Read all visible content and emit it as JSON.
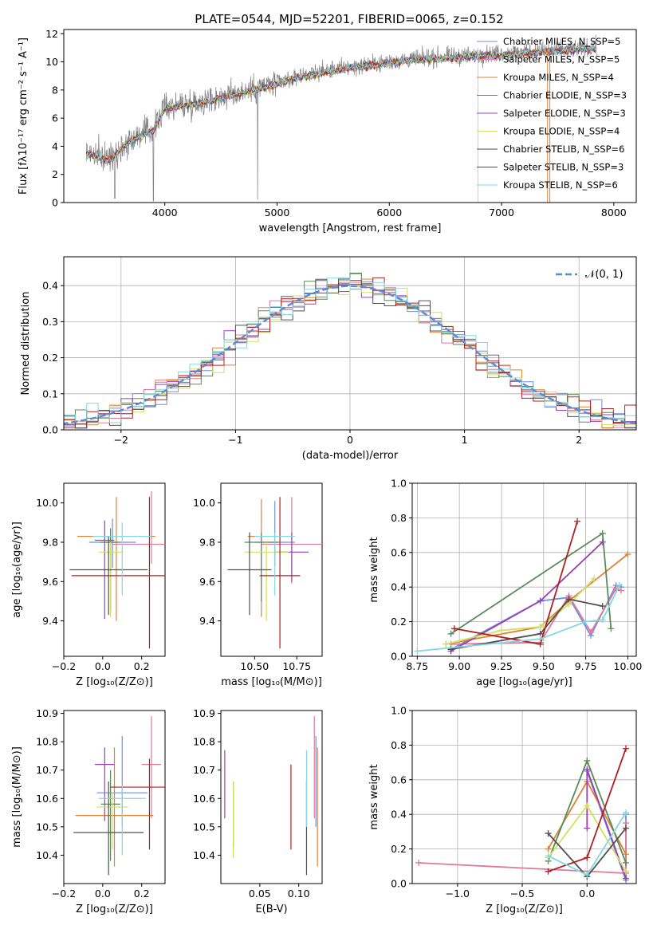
{
  "title": "PLATE=0544, MJD=52201, FIBERID=0065, z=0.152",
  "colors": {
    "c1": "#6f8fe0",
    "c2": "#e07a9a",
    "c3": "#e08030",
    "c4": "#5a8a5a",
    "c5": "#9a40b0",
    "c6": "#d0e060",
    "c7": "#505050",
    "c8": "#b02020",
    "c9": "#80d8e0"
  },
  "chart_data": [
    {
      "type": "line",
      "name": "spectrum",
      "xlabel": "wavelength [Angstrom, rest frame]",
      "ylabel": "Flux [fλ10⁻¹⁷ erg cm⁻² s⁻¹ A⁻¹]",
      "xlim": [
        3100,
        8200
      ],
      "ylim": [
        0,
        12.3
      ],
      "xticks": [
        "4000",
        "5000",
        "6000",
        "7000",
        "8000"
      ],
      "yticks": [
        "0",
        "2",
        "4",
        "6",
        "8",
        "10",
        "12"
      ],
      "legend_position": "top-right",
      "legend": [
        "Chabrier MILES, N_SSP=5",
        "Salpeter MILES, N_SSP=5",
        "Kroupa MILES, N_SSP=4",
        "Chabrier ELODIE, N_SSP=3",
        "Salpeter ELODIE, N_SSP=3",
        "Kroupa ELODIE, N_SSP=4",
        "Chabrier STELIB, N_SSP=6",
        "Salpeter STELIB, N_SSP=3",
        "Kroupa STELIB, N_SSP=6"
      ],
      "continuum_x": [
        3300,
        3500,
        3700,
        3900,
        4000,
        4200,
        4400,
        4600,
        4800,
        5000,
        5200,
        5400,
        5600,
        5800,
        6000,
        6200,
        6400,
        6600,
        6800,
        7000,
        7200,
        7400,
        7600,
        7800
      ],
      "continuum_y": [
        3.6,
        3.1,
        4.5,
        5.2,
        6.8,
        7.0,
        7.3,
        7.7,
        8.1,
        8.5,
        9.0,
        9.3,
        9.6,
        9.8,
        10.0,
        10.2,
        10.3,
        10.4,
        10.5,
        10.6,
        10.7,
        10.8,
        10.9,
        11.0
      ]
    },
    {
      "type": "histogram",
      "name": "residuals",
      "xlabel": "(data-model)/error",
      "ylabel": "Normed distribution",
      "xlim": [
        -2.5,
        2.5
      ],
      "ylim": [
        0,
        0.48
      ],
      "xticks": [
        "−2",
        "−1",
        "0",
        "1",
        "2"
      ],
      "yticks": [
        "0.0",
        "0.1",
        "0.2",
        "0.3",
        "0.4"
      ],
      "legend_position": "top-right",
      "legend": [
        "𝒩(0, 1)"
      ],
      "bin_width": 0.1
    },
    {
      "type": "scatter",
      "name": "age-vs-Z",
      "xlabel": "Z [log₁₀(Z/Z⊙)]",
      "ylabel": "age  [log₁₀(age/yr)]",
      "xlim": [
        -0.2,
        0.32
      ],
      "ylim": [
        9.22,
        10.1
      ],
      "xticks": [
        "−0.2",
        "0.0",
        "0.2"
      ],
      "yticks": [
        "9.4",
        "9.6",
        "9.8",
        "10.0"
      ],
      "points": [
        {
          "x": 0.05,
          "y": 9.8,
          "xerr": 0.12,
          "yerr": [
            0.13,
            0.12
          ]
        },
        {
          "x": 0.25,
          "y": 9.79,
          "xerr": 0.2,
          "yerr": [
            0.1,
            0.27
          ]
        },
        {
          "x": 0.07,
          "y": 9.83,
          "xerr": 0.2,
          "yerr": [
            0.43,
            0.2
          ]
        },
        {
          "x": 0.04,
          "y": 9.8,
          "xerr": 0.05,
          "yerr": [
            0.35,
            0.07
          ]
        },
        {
          "x": 0.01,
          "y": 9.81,
          "xerr": 0.05,
          "yerr": [
            0.4,
            0.1
          ]
        },
        {
          "x": 0.04,
          "y": 9.75,
          "xerr": 0.06,
          "yerr": [
            0.33,
            0.05
          ]
        },
        {
          "x": 0.03,
          "y": 9.66,
          "xerr": 0.2,
          "yerr": [
            0.23,
            0.17
          ]
        },
        {
          "x": 0.24,
          "y": 9.63,
          "xerr": 0.4,
          "yerr": [
            0.37,
            0.4
          ]
        },
        {
          "x": 0.1,
          "y": 9.83,
          "xerr": 0.15,
          "yerr": [
            0.3,
            0.07
          ]
        }
      ]
    },
    {
      "type": "scatter",
      "name": "age-vs-mass",
      "xlabel": "mass [log₁₀(M/M⊙)]",
      "ylabel": "",
      "xlim": [
        10.3,
        10.9
      ],
      "ylim": [
        9.22,
        10.1
      ],
      "xticks": [
        "10.50",
        "10.75"
      ],
      "yticks": [
        "9.4",
        "9.6",
        "9.8",
        "10.0"
      ],
      "points": [
        {
          "x": 10.62,
          "y": 9.8,
          "xerr": 0.12,
          "yerr": [
            0.12,
            0.21
          ]
        },
        {
          "x": 10.72,
          "y": 9.79,
          "xerr": 0.18,
          "yerr": [
            0.2,
            0.24
          ]
        },
        {
          "x": 10.54,
          "y": 9.83,
          "xerr": 0.08,
          "yerr": [
            0.41,
            0.19
          ]
        },
        {
          "x": 10.54,
          "y": 9.8,
          "xerr": 0.1,
          "yerr": [
            0.3,
            0.05
          ]
        },
        {
          "x": 10.72,
          "y": 9.75,
          "xerr": 0.1,
          "yerr": [
            0.15,
            0.1
          ]
        },
        {
          "x": 10.57,
          "y": 9.75,
          "xerr": 0.13,
          "yerr": [
            0.35,
            0.05
          ]
        },
        {
          "x": 10.47,
          "y": 9.66,
          "xerr": 0.13,
          "yerr": [
            0.23,
            0.19
          ]
        },
        {
          "x": 10.65,
          "y": 9.63,
          "xerr": 0.12,
          "yerr": [
            0.37,
            0.4
          ]
        },
        {
          "x": 10.62,
          "y": 9.83,
          "xerr": 0.12,
          "yerr": [
            0.3,
            0.02
          ]
        }
      ]
    },
    {
      "type": "line",
      "name": "mass-weight-vs-age",
      "xlabel": "age  [log₁₀(age/yr)]",
      "ylabel": "mass weight",
      "xlim": [
        8.72,
        10.05
      ],
      "ylim": [
        0,
        1.0
      ],
      "xticks": [
        "8.75",
        "9.00",
        "9.25",
        "9.50",
        "9.75",
        "10.00"
      ],
      "yticks": [
        "0.0",
        "0.2",
        "0.4",
        "0.6",
        "0.8",
        "1.0"
      ],
      "grid": true,
      "series": [
        {
          "x": [
            8.95,
            9.48,
            9.65,
            9.78,
            9.93,
            9.96
          ],
          "y": [
            0.04,
            0.32,
            0.34,
            0.12,
            0.41,
            0.4
          ]
        },
        {
          "x": [
            8.95,
            9.48,
            9.65,
            9.78,
            9.93,
            9.96
          ],
          "y": [
            0.07,
            0.08,
            0.35,
            0.14,
            0.39,
            0.38
          ]
        },
        {
          "x": [
            8.92,
            9.48,
            9.65,
            10.0
          ],
          "y": [
            0.07,
            0.17,
            0.32,
            0.59
          ]
        },
        {
          "x": [
            8.95,
            9.85,
            9.9
          ],
          "y": [
            0.13,
            0.71,
            0.16
          ]
        },
        {
          "x": [
            8.95,
            9.48,
            9.85
          ],
          "y": [
            0.03,
            0.32,
            0.66
          ]
        },
        {
          "x": [
            8.92,
            9.25,
            9.48,
            9.65,
            9.8
          ],
          "y": [
            0.07,
            0.15,
            0.17,
            0.3,
            0.45
          ]
        },
        {
          "x": [
            8.95,
            9.48,
            9.65,
            9.85
          ],
          "y": [
            0.04,
            0.13,
            0.33,
            0.29
          ]
        },
        {
          "x": [
            8.97,
            9.48,
            9.7
          ],
          "y": [
            0.16,
            0.07,
            0.78
          ]
        },
        {
          "x": [
            8.75,
            9.48,
            9.75,
            9.85,
            9.95
          ],
          "y": [
            0.03,
            0.1,
            0.2,
            0.21,
            0.41
          ]
        }
      ]
    },
    {
      "type": "scatter",
      "name": "mass-vs-Z",
      "xlabel": "Z [log₁₀(Z/Z⊙)]",
      "ylabel": "mass [log₁₀(M/M⊙)]",
      "xlim": [
        -0.2,
        0.32
      ],
      "ylim": [
        10.3,
        10.91
      ],
      "xticks": [
        "−0.2",
        "0.0",
        "0.2"
      ],
      "yticks": [
        "10.4",
        "10.5",
        "10.6",
        "10.7",
        "10.8",
        "10.9"
      ],
      "points": [
        {
          "x": 0.1,
          "y": 10.62,
          "xerr": 0.13,
          "yerr": [
            0.12,
            0.2
          ]
        },
        {
          "x": 0.25,
          "y": 10.72,
          "xerr": 0.05,
          "yerr": [
            0.19,
            0.17
          ]
        },
        {
          "x": 0.06,
          "y": 10.54,
          "xerr": 0.2,
          "yerr": [
            0.18,
            0.24
          ]
        },
        {
          "x": 0.04,
          "y": 10.58,
          "xerr": 0.05,
          "yerr": [
            0.2,
            0.12
          ]
        },
        {
          "x": 0.01,
          "y": 10.72,
          "xerr": 0.05,
          "yerr": [
            0.2,
            0.06
          ]
        },
        {
          "x": 0.05,
          "y": 10.57,
          "xerr": 0.08,
          "yerr": [
            0.15,
            0.05
          ]
        },
        {
          "x": 0.03,
          "y": 10.48,
          "xerr": 0.18,
          "yerr": [
            0.15,
            0.18
          ]
        },
        {
          "x": 0.24,
          "y": 10.64,
          "xerr": 0.2,
          "yerr": [
            0.22,
            0.1
          ]
        },
        {
          "x": 0.1,
          "y": 10.6,
          "xerr": 0.12,
          "yerr": [
            0.2,
            0.05
          ]
        }
      ]
    },
    {
      "type": "scatter",
      "name": "mass-vs-EBV",
      "xlabel": "E(B-V)",
      "ylabel": "",
      "xlim": [
        0.0,
        0.13
      ],
      "ylim": [
        10.3,
        10.91
      ],
      "xticks": [
        "0.05",
        "0.10"
      ],
      "yticks": [
        "10.4",
        "10.5",
        "10.6",
        "10.7",
        "10.8",
        "10.9"
      ],
      "points": [
        {
          "x": 0.122,
          "y": 10.62,
          "yerr": [
            0.12,
            0.2
          ]
        },
        {
          "x": 0.12,
          "y": 10.72,
          "yerr": [
            0.19,
            0.17
          ]
        },
        {
          "x": 0.124,
          "y": 10.54,
          "yerr": [
            0.18,
            0.24
          ]
        },
        {
          "x": 0.016,
          "y": 10.58,
          "yerr": [
            0.15,
            0.08
          ]
        },
        {
          "x": 0.005,
          "y": 10.65,
          "yerr": [
            0.12,
            0.12
          ]
        },
        {
          "x": 0.016,
          "y": 10.52,
          "yerr": [
            0.13,
            0.14
          ]
        },
        {
          "x": 0.11,
          "y": 10.48,
          "yerr": [
            0.15,
            0.18
          ]
        },
        {
          "x": 0.09,
          "y": 10.57,
          "yerr": [
            0.15,
            0.15
          ]
        },
        {
          "x": 0.11,
          "y": 10.62,
          "yerr": [
            0.12,
            0.15
          ]
        }
      ]
    },
    {
      "type": "line",
      "name": "mass-weight-vs-Z",
      "xlabel": "Z [log₁₀(Z/Z⊙)]",
      "ylabel": "mass weight",
      "xlim": [
        -1.35,
        0.38
      ],
      "ylim": [
        0,
        1.0
      ],
      "xticks": [
        "−1.0",
        "−0.5",
        "0.0"
      ],
      "yticks": [
        "0.0",
        "0.2",
        "0.4",
        "0.6",
        "0.8",
        "1.0"
      ],
      "grid": true,
      "series": [
        {
          "x": [
            0.0,
            0.3,
            0.3
          ],
          "y": [
            0.65,
            0.02,
            0.4
          ]
        },
        {
          "x": [
            -1.3,
            0.3,
            0.3
          ],
          "y": [
            0.12,
            0.06,
            0.35
          ]
        },
        {
          "x": [
            -0.3,
            0.0,
            0.3
          ],
          "y": [
            0.2,
            0.59,
            0.17
          ]
        },
        {
          "x": [
            -0.3,
            0.0,
            0.3
          ],
          "y": [
            0.13,
            0.71,
            0.12
          ]
        },
        {
          "x": [
            0.0,
            0.0,
            0.3
          ],
          "y": [
            0.32,
            0.66,
            0.03
          ]
        },
        {
          "x": [
            -0.3,
            0.0,
            0.3
          ],
          "y": [
            0.15,
            0.45,
            0.07
          ]
        },
        {
          "x": [
            -0.3,
            0.0,
            0.3
          ],
          "y": [
            0.29,
            0.04,
            0.32
          ]
        },
        {
          "x": [
            -0.3,
            0.0,
            0.3
          ],
          "y": [
            0.07,
            0.15,
            0.78
          ]
        },
        {
          "x": [
            -0.3,
            0.0,
            0.3
          ],
          "y": [
            0.16,
            0.05,
            0.41
          ]
        }
      ]
    }
  ]
}
